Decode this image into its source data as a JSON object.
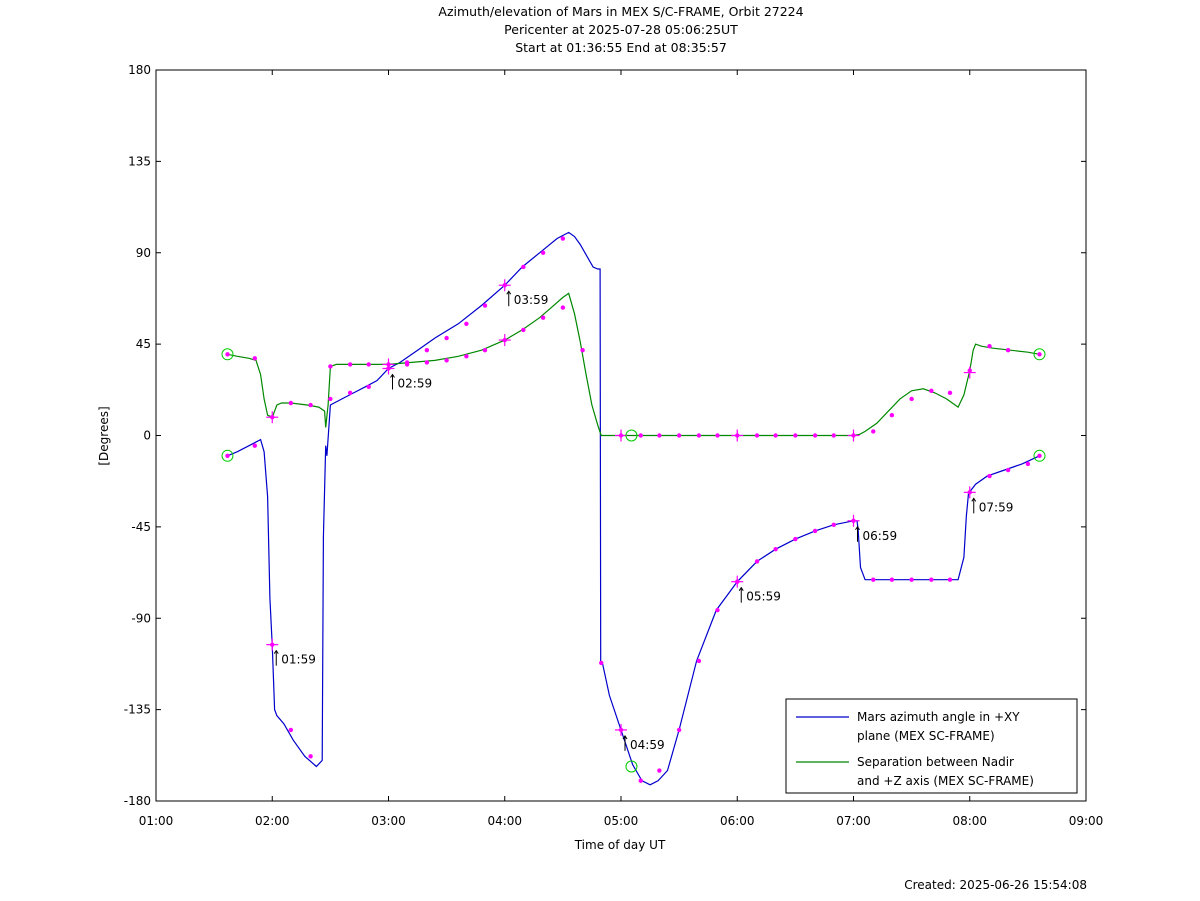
{
  "chart_data": {
    "type": "line",
    "title": [
      "Azimuth/elevation of Mars in MEX S/C-FRAME,  Orbit 27224",
      "Pericenter at 2025-07-28 05:06:25UT",
      "Start at 01:36:55 End at 08:35:57"
    ],
    "xlabel": "Time of day UT",
    "ylabel": "[Degrees]",
    "xlim": [
      1.0,
      9.0
    ],
    "ylim": [
      -180,
      180
    ],
    "x_ticks": [
      1,
      2,
      3,
      4,
      5,
      6,
      7,
      8,
      9
    ],
    "x_tick_labels": [
      "01:00",
      "02:00",
      "03:00",
      "04:00",
      "05:00",
      "06:00",
      "07:00",
      "08:00",
      "09:00"
    ],
    "y_ticks": [
      180,
      135,
      90,
      45,
      0,
      -45,
      -90,
      -135,
      -180
    ],
    "y_tick_labels": [
      "180",
      "135",
      "90",
      "45",
      "0",
      "-45",
      "-90",
      "-135",
      "-180"
    ],
    "legend_position": "bottom-right",
    "colors": {
      "series_azimuth": "#0000cc",
      "series_separation": "#008800",
      "markers": "#ff00ff",
      "endpoint_circles": "#00cc00"
    },
    "series": [
      {
        "name": "Mars azimuth angle in +XY plane (MEX SC-FRAME)",
        "legend_lines": [
          "Mars azimuth angle in +XY",
          "plane (MEX SC-FRAME)"
        ],
        "x": [
          1.615,
          1.7,
          1.8,
          1.9,
          1.93,
          1.96,
          1.98,
          2.0,
          2.02,
          2.04,
          2.1,
          2.18,
          2.28,
          2.38,
          2.43,
          2.44,
          2.46,
          2.47,
          2.5,
          2.6,
          2.7,
          2.8,
          2.9,
          3.0,
          3.1,
          3.25,
          3.4,
          3.6,
          3.8,
          4.0,
          4.15,
          4.3,
          4.45,
          4.55,
          4.6,
          4.65,
          4.7,
          4.76,
          4.8,
          4.82,
          4.825,
          4.83,
          4.84,
          4.9,
          5.0,
          5.1,
          5.18,
          5.25,
          5.32,
          5.4,
          5.5,
          5.65,
          5.82,
          6.0,
          6.17,
          6.33,
          6.5,
          6.67,
          6.83,
          7.0,
          7.03,
          7.04,
          7.06,
          7.1,
          7.2,
          7.35,
          7.5,
          7.65,
          7.8,
          7.9,
          7.95,
          7.97,
          7.99,
          8.01,
          8.05,
          8.15,
          8.3,
          8.45,
          8.6
        ],
        "y": [
          -10,
          -8,
          -5,
          -2,
          -8,
          -30,
          -80,
          -104,
          -135,
          -138,
          -142,
          -150,
          -158,
          -163,
          -160,
          -50,
          -5,
          -10,
          15,
          18,
          21,
          24,
          27,
          33,
          36,
          42,
          48,
          55,
          64,
          74,
          83,
          90,
          97,
          100,
          98,
          94,
          89,
          83,
          82,
          82,
          -112,
          -112,
          -112,
          -128,
          -145,
          -162,
          -170,
          -172,
          -170,
          -165,
          -145,
          -111,
          -86,
          -72,
          -62,
          -56,
          -51,
          -47,
          -44,
          -42,
          -42,
          -46,
          -65,
          -71,
          -71,
          -71,
          -71,
          -71,
          -71,
          -71,
          -60,
          -40,
          -28,
          -27,
          -24,
          -20,
          -17,
          -14,
          -10
        ],
        "markers_x": [
          1.615,
          1.85,
          2.0,
          2.16,
          2.33,
          2.5,
          2.67,
          2.83,
          3.0,
          3.16,
          3.33,
          3.5,
          3.67,
          3.83,
          4.0,
          4.16,
          4.33,
          4.5,
          4.83,
          5.0,
          5.17,
          5.33,
          5.5,
          5.67,
          5.83,
          6.0,
          6.17,
          6.33,
          6.5,
          6.67,
          6.83,
          7.0,
          7.17,
          7.33,
          7.5,
          7.67,
          7.83,
          8.0,
          8.17,
          8.33,
          8.5,
          8.6
        ],
        "markers_y": [
          -10,
          -5,
          -103,
          -145,
          -158,
          18,
          21,
          24,
          33,
          36,
          42,
          48,
          55,
          64,
          74,
          83,
          90,
          97,
          -112,
          -145,
          -170,
          -165,
          -145,
          -111,
          -86,
          -72,
          -62,
          -56,
          -51,
          -47,
          -44,
          -42,
          -71,
          -71,
          -71,
          -71,
          -71,
          -28,
          -20,
          -17,
          -14,
          -10
        ]
      },
      {
        "name": "Separation between Nadir and +Z axis (MEX SC-FRAME)",
        "legend_lines": [
          "Separation between Nadir",
          "and +Z axis (MEX SC-FRAME)"
        ],
        "x": [
          1.615,
          1.7,
          1.8,
          1.86,
          1.9,
          1.93,
          1.96,
          2.0,
          2.02,
          2.04,
          2.08,
          2.16,
          2.3,
          2.4,
          2.45,
          2.46,
          2.48,
          2.5,
          2.55,
          2.65,
          2.8,
          3.0,
          3.2,
          3.4,
          3.6,
          3.8,
          4.0,
          4.15,
          4.3,
          4.4,
          4.5,
          4.55,
          4.6,
          4.65,
          4.7,
          4.75,
          4.8,
          4.83,
          4.9,
          5.0,
          5.5,
          6.0,
          6.5,
          6.98,
          7.0,
          7.05,
          7.1,
          7.2,
          7.3,
          7.4,
          7.5,
          7.6,
          7.7,
          7.8,
          7.85,
          7.9,
          7.95,
          8.0,
          8.03,
          8.05,
          8.1,
          8.2,
          8.35,
          8.5,
          8.6
        ],
        "y": [
          40,
          39,
          38,
          37,
          30,
          18,
          10,
          9,
          12,
          15,
          16,
          16,
          15,
          14,
          12,
          4,
          15,
          34,
          35,
          35,
          35,
          35,
          36,
          37,
          39,
          42,
          47,
          52,
          58,
          63,
          68,
          70,
          60,
          46,
          30,
          15,
          5,
          0,
          0,
          0,
          0,
          0,
          0,
          0,
          0,
          0.5,
          2,
          6,
          12,
          18,
          22,
          23,
          21,
          18,
          16,
          14,
          20,
          32,
          42,
          45,
          44,
          43,
          42,
          41,
          40
        ],
        "markers_x": [
          1.615,
          1.85,
          2.0,
          2.16,
          2.33,
          2.5,
          2.67,
          2.83,
          3.0,
          3.16,
          3.33,
          3.5,
          3.67,
          3.83,
          4.0,
          4.16,
          4.33,
          4.5,
          4.67,
          5.0,
          5.17,
          5.33,
          5.5,
          5.67,
          5.83,
          6.0,
          6.17,
          6.33,
          6.5,
          6.67,
          6.83,
          7.0,
          7.17,
          7.33,
          7.5,
          7.67,
          7.83,
          8.0,
          8.17,
          8.33,
          8.6
        ],
        "markers_y": [
          40,
          38,
          9,
          16,
          15,
          34,
          35,
          35,
          35,
          35,
          36,
          37,
          39,
          42,
          47,
          52,
          58,
          63,
          42,
          0,
          0,
          0,
          0,
          0,
          0,
          0,
          0,
          0,
          0,
          0,
          0,
          0,
          2,
          10,
          18,
          22,
          21,
          32,
          44,
          42,
          40
        ]
      }
    ],
    "tick_markers": [
      {
        "label": "01:59",
        "x": 2.0,
        "y": -103
      },
      {
        "label": "02:59",
        "x": 3.0,
        "y": 33
      },
      {
        "label": "03:59",
        "x": 4.0,
        "y": 74
      },
      {
        "label": "04:59",
        "x": 5.0,
        "y": -145
      },
      {
        "label": "05:59",
        "x": 6.0,
        "y": -72
      },
      {
        "label": "06:59",
        "x": 7.0,
        "y": -42
      },
      {
        "label": "07:59",
        "x": 8.0,
        "y": -28
      }
    ],
    "extra_crosses": [
      {
        "x": 2.0,
        "y": 9
      },
      {
        "x": 3.0,
        "y": 35
      },
      {
        "x": 4.0,
        "y": 47
      },
      {
        "x": 5.0,
        "y": 0
      },
      {
        "x": 6.0,
        "y": 0
      },
      {
        "x": 7.0,
        "y": 0
      },
      {
        "x": 8.0,
        "y": 31
      }
    ],
    "endpoint_circles": [
      {
        "x": 1.615,
        "y": 40
      },
      {
        "x": 1.615,
        "y": -10
      },
      {
        "x": 8.6,
        "y": 40
      },
      {
        "x": 8.6,
        "y": -10
      },
      {
        "x": 5.09,
        "y": 0
      },
      {
        "x": 5.09,
        "y": -163
      }
    ]
  },
  "footer": {
    "created": "Created: 2025-06-26 15:54:08"
  }
}
